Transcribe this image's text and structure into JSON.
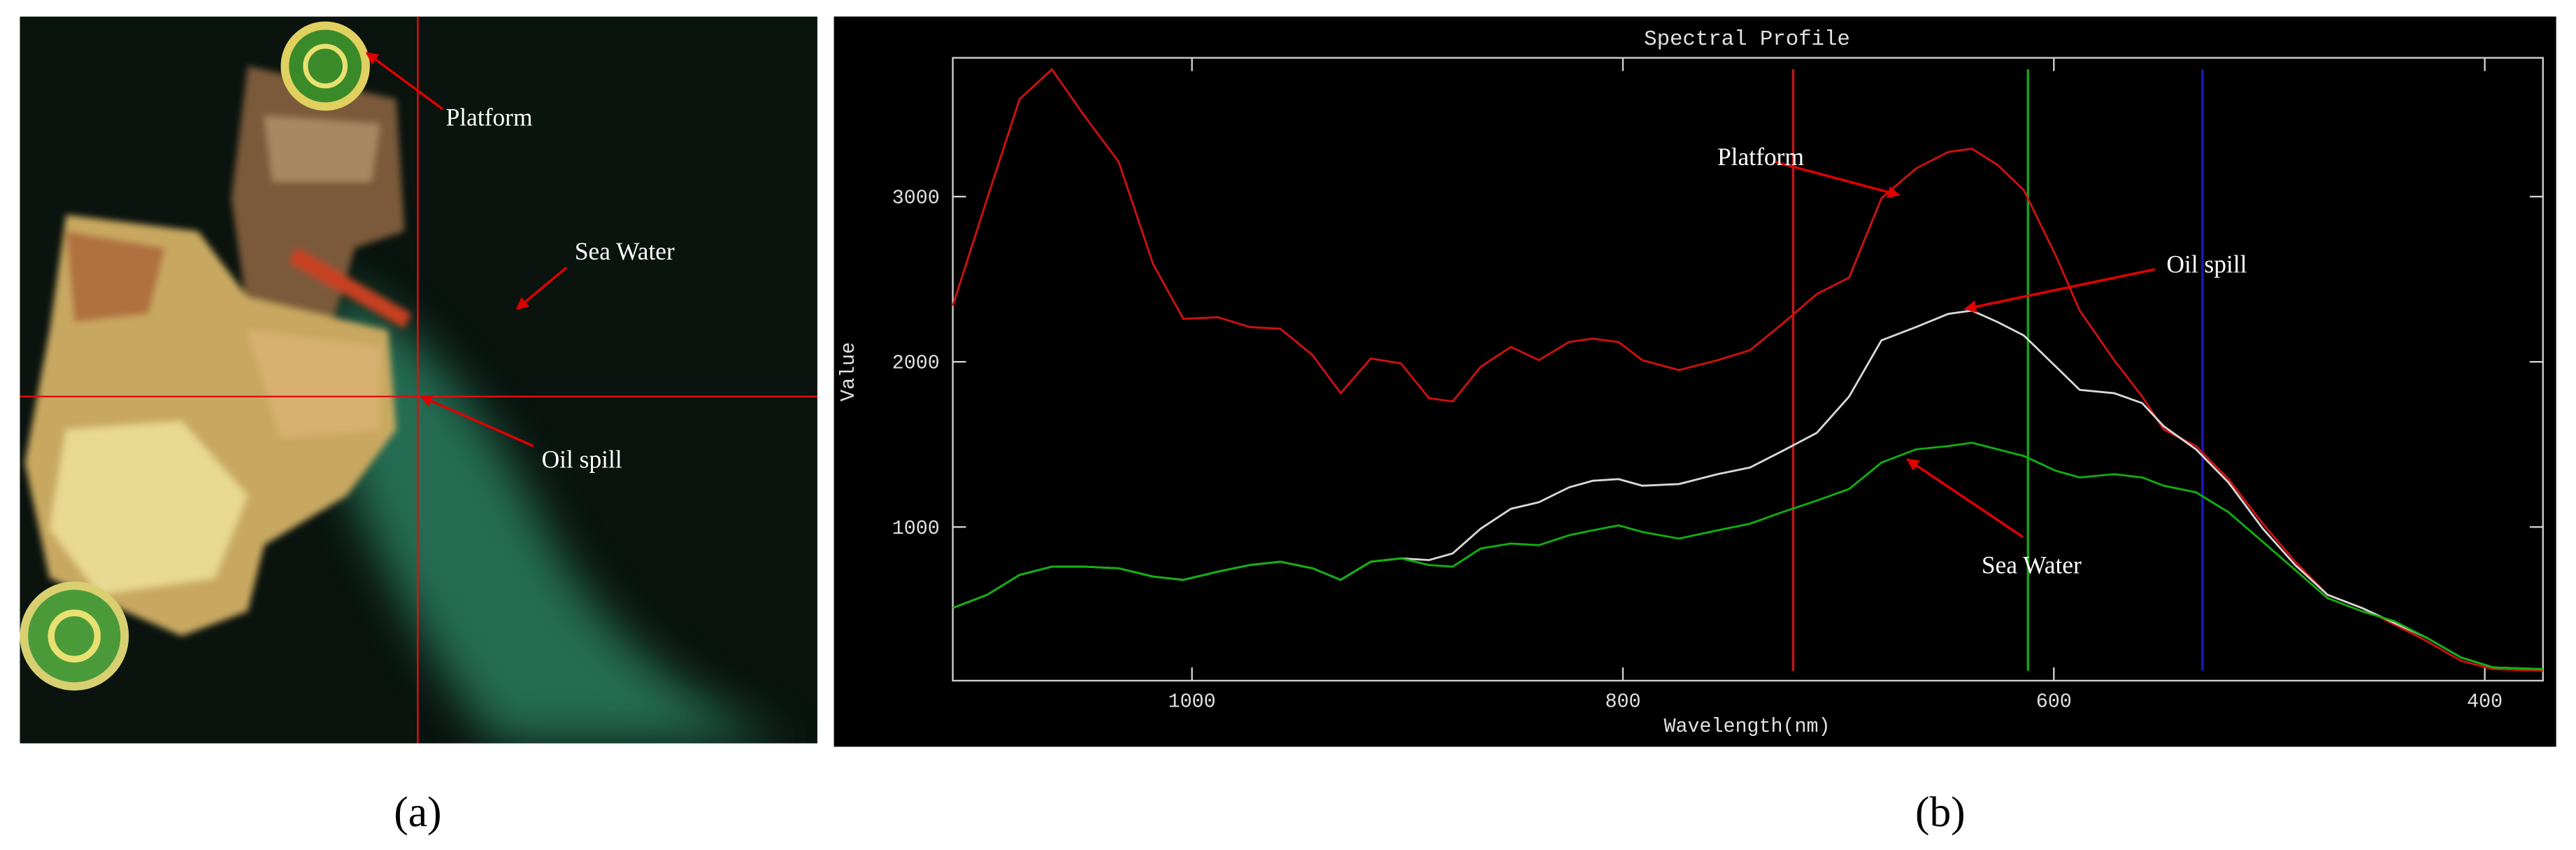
{
  "image_panel": {
    "caption": "(a)",
    "annotations": [
      "Platform",
      "Sea Water",
      "Oil spill"
    ]
  },
  "chart_data": {
    "type": "line",
    "title": "Spectral Profile",
    "caption": "(b)",
    "x_label": "Wavelength(nm)",
    "y_label": "Value",
    "xlim": [
      1111,
      373
    ],
    "ylim": [
      70,
      3840
    ],
    "xticks": [
      1000,
      800,
      600,
      400
    ],
    "yticks": [
      1000,
      2000,
      3000
    ],
    "x": [
      1111,
      1095,
      1080,
      1065,
      1050,
      1034,
      1018,
      1004,
      988,
      973,
      959,
      944,
      931,
      917,
      903,
      890,
      879,
      866,
      852,
      839,
      825,
      814,
      802,
      791,
      774,
      756,
      741,
      726,
      710,
      695,
      680,
      664,
      649,
      638,
      626,
      614,
      599,
      588,
      572,
      559,
      549,
      534,
      519,
      503,
      488,
      473,
      457,
      442,
      427,
      411,
      396,
      373
    ],
    "series": [
      {
        "name": "Platform",
        "color": "#d01010",
        "values": [
          2340,
          2990,
          3590,
          3770,
          3490,
          3210,
          2590,
          2260,
          2270,
          2210,
          2200,
          2040,
          1810,
          2020,
          1990,
          1780,
          1760,
          1970,
          2090,
          2010,
          2120,
          2140,
          2120,
          2010,
          1950,
          2010,
          2070,
          2230,
          2410,
          2510,
          2990,
          3170,
          3270,
          3290,
          3190,
          3040,
          2640,
          2310,
          2010,
          1790,
          1590,
          1490,
          1290,
          1020,
          790,
          590,
          510,
          410,
          310,
          190,
          140,
          130
        ]
      },
      {
        "name": "Oil spill",
        "color": "#d8d8d8",
        "values": [
          510,
          590,
          710,
          760,
          760,
          750,
          700,
          680,
          730,
          770,
          790,
          750,
          680,
          790,
          810,
          800,
          840,
          990,
          1110,
          1150,
          1240,
          1280,
          1290,
          1250,
          1260,
          1320,
          1360,
          1460,
          1570,
          1790,
          2130,
          2210,
          2290,
          2310,
          2240,
          2160,
          1970,
          1830,
          1810,
          1750,
          1610,
          1470,
          1270,
          990,
          770,
          590,
          510,
          420,
          330,
          210,
          150,
          140
        ]
      },
      {
        "name": "Sea Water",
        "color": "#10b010",
        "values": [
          510,
          590,
          710,
          760,
          760,
          750,
          700,
          680,
          730,
          770,
          790,
          750,
          680,
          790,
          810,
          770,
          760,
          870,
          900,
          890,
          950,
          980,
          1010,
          970,
          930,
          980,
          1020,
          1090,
          1160,
          1230,
          1390,
          1470,
          1490,
          1510,
          1470,
          1430,
          1340,
          1300,
          1320,
          1300,
          1250,
          1210,
          1090,
          910,
          740,
          570,
          490,
          430,
          330,
          210,
          150,
          140
        ]
      }
    ],
    "band_markers": [
      {
        "x": 721,
        "color": "#c01818"
      },
      {
        "x": 612,
        "color": "#18a018"
      },
      {
        "x": 531,
        "color": "#1818c0"
      }
    ]
  }
}
